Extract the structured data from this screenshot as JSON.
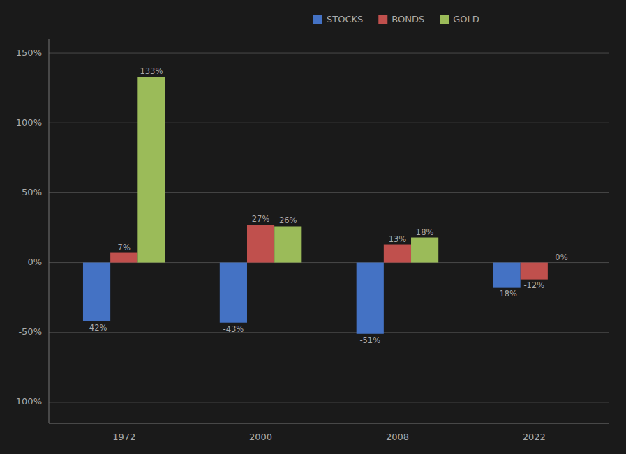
{
  "chart_data": {
    "type": "bar",
    "categories": [
      "1972",
      "2000",
      "2008",
      "2022"
    ],
    "series": [
      {
        "name": "STOCKS",
        "color": "#4472C4",
        "values": [
          -42,
          -43,
          -51,
          -18
        ],
        "value_labels": [
          "-42%",
          "-43%",
          "-51%",
          "-18%"
        ]
      },
      {
        "name": "BONDS",
        "color": "#C0504D",
        "values": [
          7,
          27,
          13,
          -12
        ],
        "value_labels": [
          "7%",
          "27%",
          "13%",
          "-12%"
        ]
      },
      {
        "name": "GOLD",
        "color": "#9BBB59",
        "values": [
          133,
          26,
          18,
          0
        ],
        "value_labels": [
          "133%",
          "26%",
          "18%",
          "0%"
        ]
      }
    ],
    "ylim": [
      -115,
      160
    ],
    "yticks": [
      {
        "value": -100,
        "label": "-100%"
      },
      {
        "value": -50,
        "label": "-50%"
      },
      {
        "value": 0,
        "label": "0%"
      },
      {
        "value": 50,
        "label": "50%"
      },
      {
        "value": 100,
        "label": "100%"
      },
      {
        "value": 150,
        "label": "150%"
      }
    ],
    "grid": true,
    "legend": "top",
    "data_labels": true
  }
}
